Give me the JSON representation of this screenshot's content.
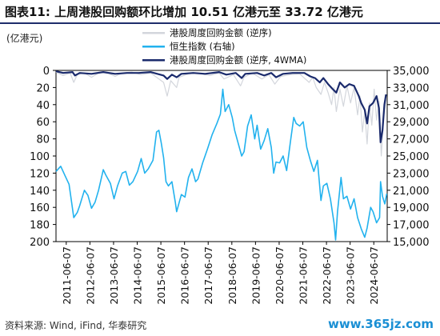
{
  "header": {
    "title": "图表11:  上周港股回购额环比增加 10.51 亿港元至 33.72 亿港元"
  },
  "footer": {
    "source": "资料来源: Wind, iFind, 华泰研究",
    "watermark": "www.365jz.com"
  },
  "colors": {
    "buyback_weekly": "#d3d6dc",
    "hsi": "#22b2ee",
    "buyback_4wma": "#1a2a6c",
    "title_rule": "#1f2d6b",
    "watermark": "#1a8fd4"
  },
  "chart_data": {
    "type": "line",
    "title": "",
    "unit_label": "(亿港元)",
    "xlabel": "",
    "ylabel_left": "(亿港元)",
    "ylabel_right": "",
    "left_axis": {
      "min": 0,
      "max": 200,
      "inverted": true,
      "ticks": [
        0,
        20,
        40,
        60,
        80,
        100,
        120,
        140,
        160,
        180,
        200
      ]
    },
    "right_axis": {
      "min": 15000,
      "max": 35000,
      "inverted": false,
      "ticks": [
        15000,
        17000,
        19000,
        21000,
        23000,
        25000,
        27000,
        29000,
        31000,
        33000,
        35000
      ]
    },
    "x_range": [
      2011.0,
      2025.0
    ],
    "x_ticks": [
      "2011-06-07",
      "2012-06-07",
      "2013-06-07",
      "2014-06-07",
      "2015-06-07",
      "2016-06-07",
      "2017-06-07",
      "2018-06-07",
      "2019-06-07",
      "2020-06-07",
      "2021-06-07",
      "2022-06-07",
      "2023-06-07",
      "2024-06-07"
    ],
    "legend": {
      "placement": "top-right",
      "entries": [
        "港股周度回购金额 (逆序)",
        "恒生指数 (右轴)",
        "港股周度回购金额 (逆序, 4WMA)"
      ]
    },
    "series": [
      {
        "name": "港股周度回购金额 (逆序)",
        "axis": "left",
        "style": "bar-like",
        "points": [
          [
            2011.0,
            2
          ],
          [
            2011.3,
            6
          ],
          [
            2011.6,
            3
          ],
          [
            2011.75,
            14
          ],
          [
            2011.9,
            5
          ],
          [
            2012.2,
            3
          ],
          [
            2012.5,
            8
          ],
          [
            2012.8,
            3
          ],
          [
            2013.1,
            2
          ],
          [
            2013.5,
            7
          ],
          [
            2013.8,
            3
          ],
          [
            2014.2,
            2
          ],
          [
            2014.6,
            5
          ],
          [
            2015.0,
            3
          ],
          [
            2015.55,
            14
          ],
          [
            2015.7,
            30
          ],
          [
            2015.85,
            12
          ],
          [
            2016.1,
            20
          ],
          [
            2016.2,
            8
          ],
          [
            2016.6,
            4
          ],
          [
            2017.0,
            3
          ],
          [
            2017.5,
            6
          ],
          [
            2017.9,
            3
          ],
          [
            2018.1,
            10
          ],
          [
            2018.5,
            5
          ],
          [
            2018.8,
            18
          ],
          [
            2018.95,
            8
          ],
          [
            2019.3,
            3
          ],
          [
            2019.7,
            10
          ],
          [
            2020.0,
            5
          ],
          [
            2020.25,
            16
          ],
          [
            2020.5,
            7
          ],
          [
            2020.9,
            5
          ],
          [
            2021.3,
            4
          ],
          [
            2021.7,
            14
          ],
          [
            2021.85,
            8
          ],
          [
            2022.0,
            20
          ],
          [
            2022.2,
            28
          ],
          [
            2022.35,
            14
          ],
          [
            2022.5,
            26
          ],
          [
            2022.65,
            40
          ],
          [
            2022.75,
            20
          ],
          [
            2022.85,
            48
          ],
          [
            2023.0,
            22
          ],
          [
            2023.15,
            42
          ],
          [
            2023.3,
            18
          ],
          [
            2023.45,
            38
          ],
          [
            2023.6,
            20
          ],
          [
            2023.75,
            52
          ],
          [
            2023.85,
            30
          ],
          [
            2023.95,
            72
          ],
          [
            2024.05,
            48
          ],
          [
            2024.15,
            86
          ],
          [
            2024.25,
            38
          ],
          [
            2024.35,
            64
          ],
          [
            2024.45,
            22
          ],
          [
            2024.55,
            58
          ],
          [
            2024.65,
            36
          ],
          [
            2024.75,
            100
          ],
          [
            2024.85,
            54
          ],
          [
            2024.95,
            34
          ]
        ]
      },
      {
        "name": "恒生指数 (右轴)",
        "axis": "right",
        "points": [
          [
            2011.0,
            23200
          ],
          [
            2011.2,
            23800
          ],
          [
            2011.4,
            22600
          ],
          [
            2011.55,
            21700
          ],
          [
            2011.65,
            19800
          ],
          [
            2011.75,
            17800
          ],
          [
            2011.9,
            18400
          ],
          [
            2012.0,
            19200
          ],
          [
            2012.2,
            21000
          ],
          [
            2012.35,
            20400
          ],
          [
            2012.5,
            18900
          ],
          [
            2012.65,
            19600
          ],
          [
            2012.8,
            21000
          ],
          [
            2013.0,
            23400
          ],
          [
            2013.1,
            22800
          ],
          [
            2013.3,
            21800
          ],
          [
            2013.45,
            20000
          ],
          [
            2013.6,
            21500
          ],
          [
            2013.8,
            23000
          ],
          [
            2013.95,
            23200
          ],
          [
            2014.1,
            21600
          ],
          [
            2014.25,
            22000
          ],
          [
            2014.45,
            23200
          ],
          [
            2014.6,
            24700
          ],
          [
            2014.75,
            23000
          ],
          [
            2014.9,
            23500
          ],
          [
            2015.1,
            24500
          ],
          [
            2015.25,
            27800
          ],
          [
            2015.35,
            28000
          ],
          [
            2015.45,
            26500
          ],
          [
            2015.55,
            24800
          ],
          [
            2015.65,
            22000
          ],
          [
            2015.75,
            21500
          ],
          [
            2015.9,
            22000
          ],
          [
            2016.05,
            19500
          ],
          [
            2016.1,
            18500
          ],
          [
            2016.3,
            20500
          ],
          [
            2016.45,
            20200
          ],
          [
            2016.6,
            22500
          ],
          [
            2016.75,
            23500
          ],
          [
            2016.9,
            22000
          ],
          [
            2017.0,
            22300
          ],
          [
            2017.2,
            24200
          ],
          [
            2017.4,
            25800
          ],
          [
            2017.6,
            27500
          ],
          [
            2017.8,
            28800
          ],
          [
            2017.95,
            29900
          ],
          [
            2018.05,
            32800
          ],
          [
            2018.15,
            30200
          ],
          [
            2018.3,
            31000
          ],
          [
            2018.45,
            29500
          ],
          [
            2018.55,
            28000
          ],
          [
            2018.7,
            26500
          ],
          [
            2018.85,
            25000
          ],
          [
            2018.95,
            25500
          ],
          [
            2019.1,
            28500
          ],
          [
            2019.25,
            29800
          ],
          [
            2019.4,
            27000
          ],
          [
            2019.5,
            28600
          ],
          [
            2019.65,
            25800
          ],
          [
            2019.8,
            26800
          ],
          [
            2019.95,
            28200
          ],
          [
            2020.1,
            26000
          ],
          [
            2020.2,
            23000
          ],
          [
            2020.3,
            24300
          ],
          [
            2020.45,
            24200
          ],
          [
            2020.6,
            25000
          ],
          [
            2020.75,
            23300
          ],
          [
            2020.9,
            26500
          ],
          [
            2021.05,
            29500
          ],
          [
            2021.15,
            28800
          ],
          [
            2021.3,
            28500
          ],
          [
            2021.45,
            29000
          ],
          [
            2021.6,
            26000
          ],
          [
            2021.75,
            24500
          ],
          [
            2021.9,
            23200
          ],
          [
            2022.05,
            24500
          ],
          [
            2022.2,
            19800
          ],
          [
            2022.3,
            21500
          ],
          [
            2022.45,
            21800
          ],
          [
            2022.6,
            20000
          ],
          [
            2022.75,
            17200
          ],
          [
            2022.82,
            15200
          ],
          [
            2022.9,
            18500
          ],
          [
            2023.05,
            22500
          ],
          [
            2023.15,
            20000
          ],
          [
            2023.3,
            20300
          ],
          [
            2023.45,
            18800
          ],
          [
            2023.6,
            20000
          ],
          [
            2023.75,
            17800
          ],
          [
            2023.9,
            16500
          ],
          [
            2024.05,
            15500
          ],
          [
            2024.15,
            16600
          ],
          [
            2024.3,
            19000
          ],
          [
            2024.4,
            18500
          ],
          [
            2024.55,
            17200
          ],
          [
            2024.68,
            17800
          ],
          [
            2024.72,
            22000
          ],
          [
            2024.8,
            20300
          ],
          [
            2024.9,
            19400
          ],
          [
            2024.98,
            20600
          ]
        ]
      },
      {
        "name": "港股周度回购金额 (逆序, 4WMA)",
        "axis": "left",
        "points": [
          [
            2011.0,
            1
          ],
          [
            2011.3,
            3
          ],
          [
            2011.7,
            2
          ],
          [
            2011.8,
            6
          ],
          [
            2012.0,
            3
          ],
          [
            2012.5,
            4
          ],
          [
            2013.0,
            2
          ],
          [
            2013.5,
            4
          ],
          [
            2014.0,
            3
          ],
          [
            2014.5,
            3
          ],
          [
            2015.0,
            2
          ],
          [
            2015.55,
            6
          ],
          [
            2015.7,
            10
          ],
          [
            2015.9,
            5
          ],
          [
            2016.1,
            8
          ],
          [
            2016.3,
            4
          ],
          [
            2016.8,
            3
          ],
          [
            2017.3,
            4
          ],
          [
            2017.9,
            2
          ],
          [
            2018.2,
            5
          ],
          [
            2018.6,
            3
          ],
          [
            2018.85,
            9
          ],
          [
            2019.0,
            4
          ],
          [
            2019.5,
            3
          ],
          [
            2019.8,
            6
          ],
          [
            2020.1,
            3
          ],
          [
            2020.3,
            8
          ],
          [
            2020.6,
            4
          ],
          [
            2021.0,
            3
          ],
          [
            2021.5,
            3
          ],
          [
            2021.75,
            7
          ],
          [
            2021.95,
            9
          ],
          [
            2022.15,
            14
          ],
          [
            2022.3,
            9
          ],
          [
            2022.5,
            16
          ],
          [
            2022.7,
            22
          ],
          [
            2022.85,
            26
          ],
          [
            2023.0,
            14
          ],
          [
            2023.2,
            20
          ],
          [
            2023.4,
            16
          ],
          [
            2023.6,
            18
          ],
          [
            2023.8,
            30
          ],
          [
            2023.9,
            38
          ],
          [
            2024.05,
            46
          ],
          [
            2024.15,
            62
          ],
          [
            2024.25,
            42
          ],
          [
            2024.4,
            38
          ],
          [
            2024.55,
            30
          ],
          [
            2024.65,
            44
          ],
          [
            2024.72,
            84
          ],
          [
            2024.8,
            70
          ],
          [
            2024.88,
            40
          ],
          [
            2024.95,
            28
          ]
        ]
      }
    ]
  }
}
